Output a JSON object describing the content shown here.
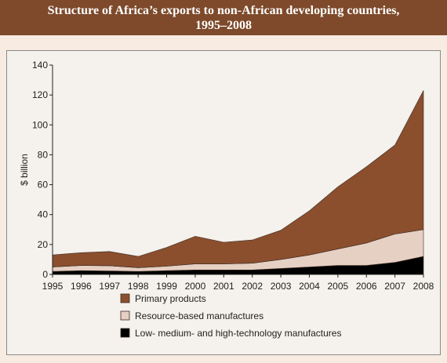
{
  "header": {
    "title_line1": "Structure of Africa’s exports to non-African developing countries,",
    "title_line2": "1995–2008"
  },
  "chart_data": {
    "type": "area",
    "stacked": true,
    "x": [
      1995,
      1996,
      1997,
      1998,
      1999,
      2000,
      2001,
      2002,
      2003,
      2004,
      2005,
      2006,
      2007,
      2008
    ],
    "ylabel": "$ billion",
    "xlabel": "",
    "ylim": [
      0,
      140
    ],
    "yticks": [
      0,
      20,
      40,
      60,
      80,
      100,
      120,
      140
    ],
    "grid": false,
    "legend_position": "bottom",
    "series": [
      {
        "name": "Low- medium- and high-technology manufactures",
        "color": "#000000",
        "values": [
          2,
          2.5,
          2.3,
          2,
          2.5,
          3,
          3,
          3,
          4,
          5,
          6,
          6,
          8,
          12
        ]
      },
      {
        "name": "Resource-based manufactures",
        "color": "#e6cfc3",
        "values": [
          3,
          3.5,
          3.5,
          2.5,
          3,
          4,
          4,
          4.5,
          6,
          8,
          11,
          15,
          19,
          18
        ]
      },
      {
        "name": "Primary products",
        "color": "#8b4f2e",
        "values": [
          8,
          8.5,
          9.5,
          7.5,
          12.5,
          18.5,
          14.5,
          15.5,
          19.5,
          29.5,
          41.5,
          51,
          59.5,
          93
        ]
      }
    ]
  }
}
